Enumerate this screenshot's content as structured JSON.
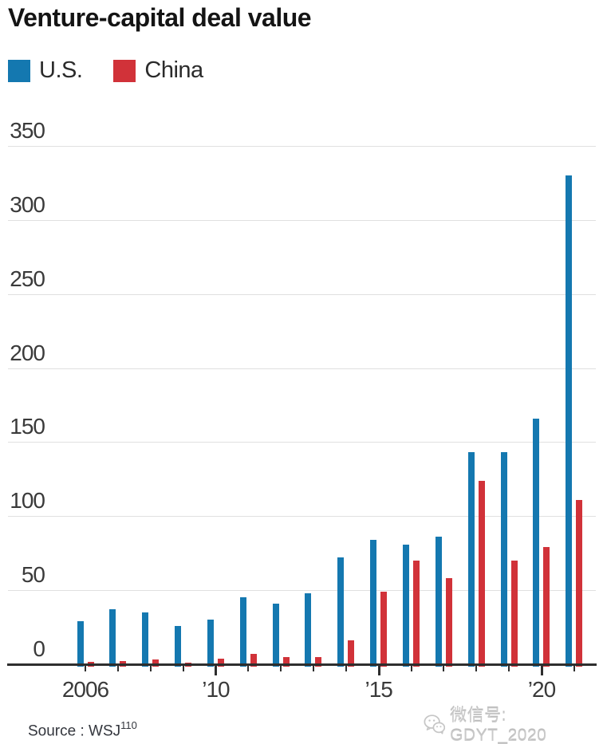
{
  "title": "Venture-capital deal value",
  "legend": {
    "items": [
      {
        "label": "U.S.",
        "color": "#1478b0"
      },
      {
        "label": "China",
        "color": "#d13239"
      }
    ]
  },
  "chart_data": {
    "type": "bar",
    "title": "Venture-capital deal value",
    "categories": [
      2006,
      2007,
      2008,
      2009,
      2010,
      2011,
      2012,
      2013,
      2014,
      2015,
      2016,
      2017,
      2018,
      2019,
      2020,
      2021
    ],
    "series": [
      {
        "name": "U.S.",
        "color": "#1478b0",
        "values": [
          29,
          37,
          35,
          26,
          30,
          45,
          41,
          48,
          72,
          84,
          81,
          86,
          143,
          143,
          166,
          330
        ]
      },
      {
        "name": "China",
        "color": "#d13239",
        "values": [
          1.5,
          2,
          3,
          1,
          4,
          7,
          5,
          5,
          16,
          49,
          70,
          58,
          124,
          70,
          79,
          111
        ]
      }
    ],
    "ylim": [
      0,
      350
    ],
    "yticks": [
      0,
      50,
      100,
      150,
      200,
      250,
      300,
      350
    ],
    "xtick_labels": [
      {
        "year": 2006,
        "label": "2006"
      },
      {
        "year": 2010,
        "label": "’10"
      },
      {
        "year": 2015,
        "label": "’15"
      },
      {
        "year": 2020,
        "label": "’20"
      }
    ],
    "long_tick_years": [
      2010,
      2015,
      2020
    ],
    "grid": "horizontal",
    "legend_position": "top-left"
  },
  "source": {
    "label": "Source : WSJ",
    "footnote": "110"
  },
  "watermark": {
    "icon": "wechat-icon",
    "text": "微信号: GDYT_2020"
  }
}
